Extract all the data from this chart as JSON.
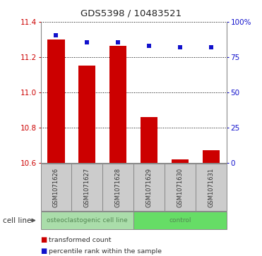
{
  "title": "GDS5398 / 10483521",
  "samples": [
    "GSM1071626",
    "GSM1071627",
    "GSM1071628",
    "GSM1071629",
    "GSM1071630",
    "GSM1071631"
  ],
  "bar_values": [
    11.3,
    11.15,
    11.265,
    10.86,
    10.62,
    10.67
  ],
  "blue_values": [
    11.325,
    11.285,
    11.285,
    11.265,
    11.255,
    11.255
  ],
  "bar_bottom": 10.6,
  "ylim": [
    10.6,
    11.4
  ],
  "yticks_left": [
    10.6,
    10.8,
    11.0,
    11.2,
    11.4
  ],
  "yticks_right": [
    0,
    25,
    50,
    75,
    100
  ],
  "bar_color": "#cc0000",
  "blue_color": "#1111cc",
  "groups": [
    {
      "label": "osteoclastogenic cell line",
      "start": 0,
      "end": 3,
      "color": "#aaddaa"
    },
    {
      "label": "control",
      "start": 3,
      "end": 6,
      "color": "#66dd66"
    }
  ],
  "group_label_color": "#558855",
  "cell_line_label": "cell line",
  "legend_items": [
    {
      "color": "#cc0000",
      "label": "transformed count"
    },
    {
      "color": "#1111cc",
      "label": "percentile rank within the sample"
    }
  ],
  "bg_color": "#ffffff",
  "plot_bg": "#ffffff",
  "grid_color": "#000000",
  "tick_label_color_left": "#cc0000",
  "tick_label_color_right": "#1111cc",
  "bar_width": 0.55,
  "gray_color": "#cccccc",
  "border_color": "#888888"
}
